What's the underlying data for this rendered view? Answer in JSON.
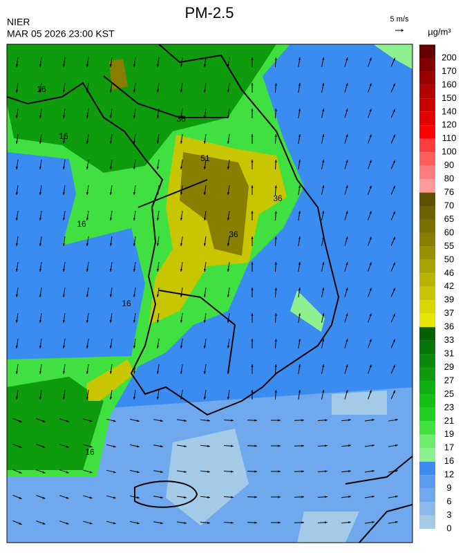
{
  "header": {
    "title": "PM-2.5",
    "source": "NIER",
    "datetime": "MAR 05 2026 23:00 KST",
    "wind_scale": "5 m/s",
    "unit": "µg/m³"
  },
  "legend": {
    "levels": [
      0,
      3,
      6,
      9,
      12,
      16,
      17,
      19,
      21,
      23,
      25,
      27,
      29,
      31,
      33,
      36,
      37,
      39,
      42,
      46,
      50,
      55,
      60,
      65,
      70,
      76,
      80,
      90,
      100,
      110,
      120,
      140,
      150,
      160,
      170,
      200
    ],
    "colors": [
      "#a3cbe8",
      "#8ab9ea",
      "#6fa8ec",
      "#5c9cf0",
      "#3a8cf0",
      "#8ef08e",
      "#6eec6e",
      "#3fe03f",
      "#22d022",
      "#14c014",
      "#10b010",
      "#0e9c0e",
      "#0c880c",
      "#0a760a",
      "#066006",
      "#e6e600",
      "#d8d800",
      "#c8c600",
      "#b8b400",
      "#a8a200",
      "#989000",
      "#887f00",
      "#787000",
      "#6c6200",
      "#5e5200",
      "#ff9a9a",
      "#ff7c7c",
      "#ff5c5c",
      "#ff3c3c",
      "#ff0000",
      "#e40000",
      "#cc0000",
      "#b40000",
      "#9c0000",
      "#820000",
      "#640000"
    ]
  },
  "contour_labels": [
    "16",
    "16",
    "16",
    "16",
    "16",
    "36",
    "36",
    "51",
    "36"
  ]
}
